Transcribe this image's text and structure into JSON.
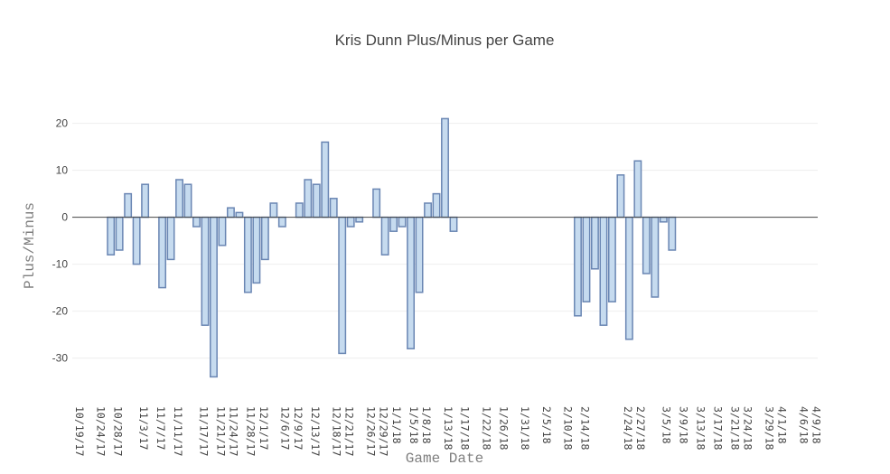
{
  "colors": {
    "bar_fill": "#c6dbef",
    "bar_outline": "#6a86b3",
    "grid": "#eeeeee",
    "zero_line": "#444444",
    "text": "#444444",
    "axis_title": "#7f7f7f"
  },
  "chart_data": {
    "type": "bar",
    "title": "Kris Dunn Plus/Minus per Game",
    "xlabel": "Game Date",
    "ylabel": "Plus/Minus",
    "xlim": [
      "2017-10-19",
      "2018-04-11"
    ],
    "ylim": [
      -37,
      28
    ],
    "grid": true,
    "yticks": [
      -30,
      -20,
      -10,
      0,
      10,
      20
    ],
    "xticks": [
      {
        "date": "2017-10-19",
        "label": "10/19/17"
      },
      {
        "date": "2017-10-24",
        "label": "10/24/17"
      },
      {
        "date": "2017-10-28",
        "label": "10/28/17"
      },
      {
        "date": "2017-11-03",
        "label": "11/3/17"
      },
      {
        "date": "2017-11-07",
        "label": "11/7/17"
      },
      {
        "date": "2017-11-11",
        "label": "11/11/17"
      },
      {
        "date": "2017-11-17",
        "label": "11/17/17"
      },
      {
        "date": "2017-11-21",
        "label": "11/21/17"
      },
      {
        "date": "2017-11-24",
        "label": "11/24/17"
      },
      {
        "date": "2017-11-28",
        "label": "11/28/17"
      },
      {
        "date": "2017-12-01",
        "label": "12/1/17"
      },
      {
        "date": "2017-12-06",
        "label": "12/6/17"
      },
      {
        "date": "2017-12-09",
        "label": "12/9/17"
      },
      {
        "date": "2017-12-13",
        "label": "12/13/17"
      },
      {
        "date": "2017-12-18",
        "label": "12/18/17"
      },
      {
        "date": "2017-12-21",
        "label": "12/21/17"
      },
      {
        "date": "2017-12-26",
        "label": "12/26/17"
      },
      {
        "date": "2017-12-29",
        "label": "12/29/17"
      },
      {
        "date": "2018-01-01",
        "label": "1/1/18"
      },
      {
        "date": "2018-01-05",
        "label": "1/5/18"
      },
      {
        "date": "2018-01-08",
        "label": "1/8/18"
      },
      {
        "date": "2018-01-13",
        "label": "1/13/18"
      },
      {
        "date": "2018-01-17",
        "label": "1/17/18"
      },
      {
        "date": "2018-01-22",
        "label": "1/22/18"
      },
      {
        "date": "2018-01-26",
        "label": "1/26/18"
      },
      {
        "date": "2018-01-31",
        "label": "1/31/18"
      },
      {
        "date": "2018-02-05",
        "label": "2/5/18"
      },
      {
        "date": "2018-02-10",
        "label": "2/10/18"
      },
      {
        "date": "2018-02-14",
        "label": "2/14/18"
      },
      {
        "date": "2018-02-24",
        "label": "2/24/18"
      },
      {
        "date": "2018-02-27",
        "label": "2/27/18"
      },
      {
        "date": "2018-03-05",
        "label": "3/5/18"
      },
      {
        "date": "2018-03-09",
        "label": "3/9/18"
      },
      {
        "date": "2018-03-13",
        "label": "3/13/18"
      },
      {
        "date": "2018-03-17",
        "label": "3/17/18"
      },
      {
        "date": "2018-03-21",
        "label": "3/21/18"
      },
      {
        "date": "2018-03-24",
        "label": "3/24/18"
      },
      {
        "date": "2018-03-29",
        "label": "3/29/18"
      },
      {
        "date": "2018-04-01",
        "label": "4/1/18"
      },
      {
        "date": "2018-04-06",
        "label": "4/6/18"
      },
      {
        "date": "2018-04-09",
        "label": "4/9/18"
      }
    ],
    "points": [
      {
        "x": "2017-10-28",
        "y": -8
      },
      {
        "x": "2017-10-30",
        "y": -7
      },
      {
        "x": "2017-11-01",
        "y": 5
      },
      {
        "x": "2017-11-03",
        "y": -10
      },
      {
        "x": "2017-11-05",
        "y": 7
      },
      {
        "x": "2017-11-09",
        "y": -15
      },
      {
        "x": "2017-11-11",
        "y": -9
      },
      {
        "x": "2017-11-13",
        "y": 8
      },
      {
        "x": "2017-11-15",
        "y": 7
      },
      {
        "x": "2017-11-17",
        "y": -2
      },
      {
        "x": "2017-11-19",
        "y": -23
      },
      {
        "x": "2017-11-21",
        "y": -34
      },
      {
        "x": "2017-11-23",
        "y": -6
      },
      {
        "x": "2017-11-25",
        "y": 2
      },
      {
        "x": "2017-11-27",
        "y": 1
      },
      {
        "x": "2017-11-29",
        "y": -16
      },
      {
        "x": "2017-12-01",
        "y": -14
      },
      {
        "x": "2017-12-03",
        "y": -9
      },
      {
        "x": "2017-12-05",
        "y": 3
      },
      {
        "x": "2017-12-07",
        "y": -2
      },
      {
        "x": "2017-12-11",
        "y": 3
      },
      {
        "x": "2017-12-13",
        "y": 8
      },
      {
        "x": "2017-12-15",
        "y": 7
      },
      {
        "x": "2017-12-17",
        "y": 16
      },
      {
        "x": "2017-12-19",
        "y": 4
      },
      {
        "x": "2017-12-21",
        "y": -29
      },
      {
        "x": "2017-12-23",
        "y": -2
      },
      {
        "x": "2017-12-25",
        "y": -1
      },
      {
        "x": "2017-12-29",
        "y": 6
      },
      {
        "x": "2017-12-31",
        "y": -8
      },
      {
        "x": "2018-01-02",
        "y": -3
      },
      {
        "x": "2018-01-04",
        "y": -2
      },
      {
        "x": "2018-01-06",
        "y": -28
      },
      {
        "x": "2018-01-08",
        "y": -16
      },
      {
        "x": "2018-01-10",
        "y": 3
      },
      {
        "x": "2018-01-12",
        "y": 5
      },
      {
        "x": "2018-01-14",
        "y": 21
      },
      {
        "x": "2018-01-16",
        "y": -3
      },
      {
        "x": "2018-02-14",
        "y": -21
      },
      {
        "x": "2018-02-16",
        "y": -18
      },
      {
        "x": "2018-02-18",
        "y": -11
      },
      {
        "x": "2018-02-20",
        "y": -23
      },
      {
        "x": "2018-02-22",
        "y": -18
      },
      {
        "x": "2018-02-24",
        "y": 9
      },
      {
        "x": "2018-02-26",
        "y": -26
      },
      {
        "x": "2018-02-28",
        "y": 12
      },
      {
        "x": "2018-03-02",
        "y": -12
      },
      {
        "x": "2018-03-04",
        "y": -17
      },
      {
        "x": "2018-03-06",
        "y": -1
      },
      {
        "x": "2018-03-08",
        "y": -7
      }
    ]
  }
}
